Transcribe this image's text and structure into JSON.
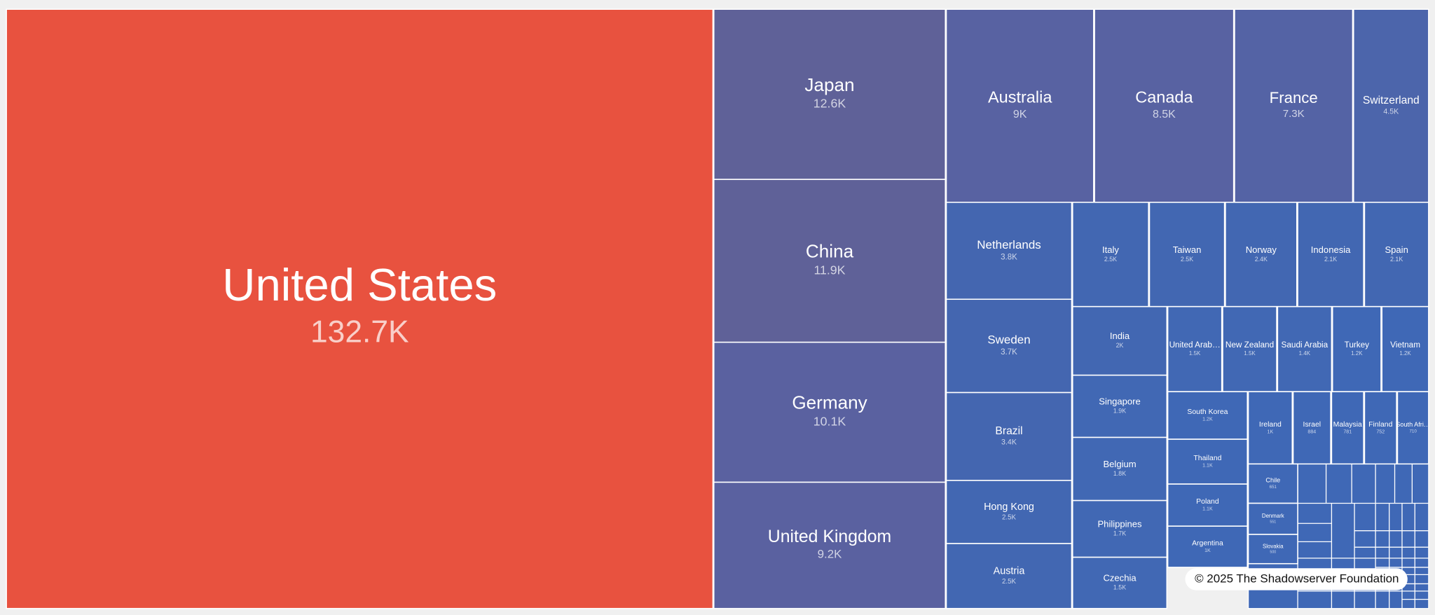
{
  "chart_data": {
    "type": "treemap",
    "categories": [
      "United States",
      "Japan",
      "China",
      "Germany",
      "United Kingdom",
      "Australia",
      "Canada",
      "France",
      "Switzerland",
      "Netherlands",
      "Sweden",
      "Brazil",
      "Hong Kong",
      "Austria",
      "Italy",
      "Taiwan",
      "Norway",
      "Indonesia",
      "Spain",
      "India",
      "Singapore",
      "Belgium",
      "Philippines",
      "Czechia",
      "United Arab…",
      "New Zealand",
      "Saudi Arabia",
      "Turkey",
      "Vietnam",
      "South Korea",
      "Thailand",
      "Poland",
      "Argentina",
      "Ireland",
      "Israel",
      "Malaysia",
      "Finland",
      "South Afri…",
      "Chile",
      "Denmark",
      "Slovakia"
    ],
    "values": [
      132700,
      12600,
      11900,
      10100,
      9200,
      9000,
      8500,
      7300,
      4500,
      3800,
      3700,
      3400,
      2500,
      2500,
      2500,
      2500,
      2400,
      2100,
      2100,
      2000,
      1900,
      1800,
      1700,
      1500,
      1500,
      1500,
      1400,
      1200,
      1200,
      1200,
      1100,
      1100,
      1000,
      1000,
      884,
      781,
      752,
      710,
      651,
      551,
      500
    ],
    "value_labels": [
      "132.7K",
      "12.6K",
      "11.9K",
      "10.1K",
      "9.2K",
      "9K",
      "8.5K",
      "7.3K",
      "4.5K",
      "3.8K",
      "3.7K",
      "3.4K",
      "2.5K",
      "2.5K",
      "2.5K",
      "2.5K",
      "2.4K",
      "2.1K",
      "2.1K",
      "2K",
      "1.9K",
      "1.8K",
      "1.7K",
      "1.5K",
      "1.5K",
      "1.5K",
      "1.4K",
      "1.2K",
      "1.2K",
      "1.2K",
      "1.1K",
      "1.1K",
      "1K",
      "1K",
      "884",
      "781",
      "752",
      "710",
      "651",
      "551",
      "500"
    ],
    "colors": [
      "#e8523f",
      "#5f6198",
      "#5f6198",
      "#5a61a0",
      "#5a61a0",
      "#5862a2",
      "#5862a2",
      "#5463a5",
      "#4c65ab",
      "#4466b0",
      "#4466b0",
      "#4466b0",
      "#4267b2",
      "#4267b2",
      "#4267b2",
      "#4267b2",
      "#4267b2",
      "#4267b2",
      "#4267b2",
      "#4267b2",
      "#4168b4",
      "#4168b4",
      "#4168b4",
      "#4168b4",
      "#4168b4",
      "#4168b4",
      "#4168b4",
      "#3f68b6",
      "#3f68b6",
      "#3f68b6",
      "#3f68b6",
      "#3f68b6",
      "#3f68b6",
      "#3f68b6",
      "#3f68b6",
      "#3f68b6",
      "#3f68b6",
      "#3f68b6",
      "#3f68b6",
      "#3f68b6",
      "#3f68b6"
    ],
    "credit": "© 2025 The Shadowserver Foundation"
  }
}
